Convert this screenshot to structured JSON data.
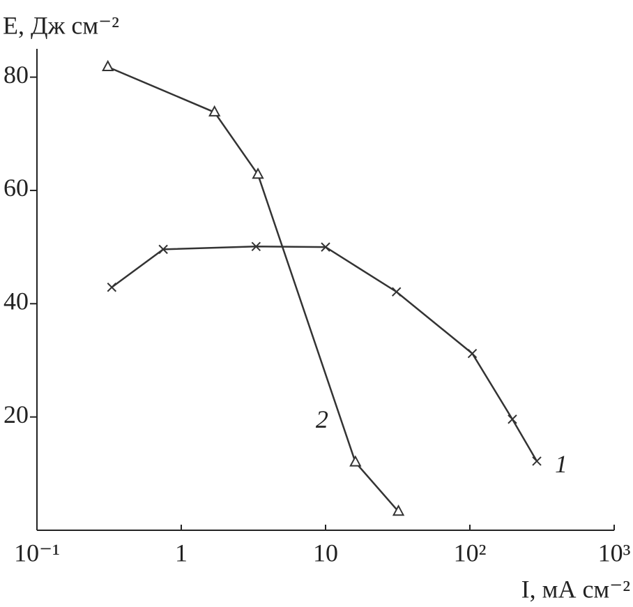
{
  "chart_data": {
    "type": "line",
    "y_label": "E, Дж см⁻²",
    "x_label": "I, мА см⁻²",
    "xscale": "log",
    "xlim": [
      0.1,
      1000
    ],
    "ylim": [
      0,
      85
    ],
    "xticks": [
      {
        "value": 0.1,
        "label": "10⁻¹"
      },
      1,
      10,
      {
        "value": 100,
        "label": "10²"
      },
      {
        "value": 1000,
        "label": "10³"
      }
    ],
    "yticks": [
      20,
      40,
      60,
      80
    ],
    "series": [
      {
        "name": "1",
        "color": "#333333",
        "marker": "cross",
        "x": [
          0.33,
          0.75,
          3.3,
          10,
          31,
          104,
          197,
          291
        ],
        "values": [
          42.9,
          49.6,
          50.1,
          50,
          42.1,
          31.2,
          19.6,
          12.2
        ]
      },
      {
        "name": "2",
        "color": "#333333",
        "marker": "triangle",
        "x": [
          0.31,
          1.7,
          3.4,
          16.1,
          32
        ],
        "values": [
          81.8,
          73.8,
          62.8,
          12,
          3.3
        ]
      }
    ]
  }
}
